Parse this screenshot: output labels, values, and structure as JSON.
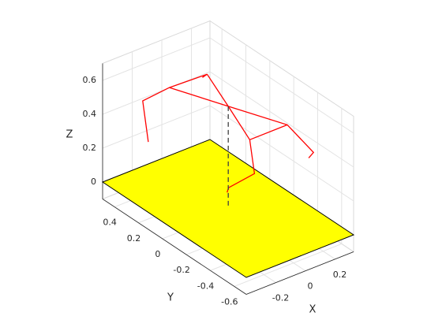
{
  "chart_data": {
    "type": "line3d",
    "xlabel": "X",
    "ylabel": "Y",
    "zlabel": "Z",
    "xlim": [
      -0.4,
      0.325
    ],
    "ylim": [
      -0.7,
      0.5
    ],
    "zlim": [
      -0.1,
      0.7
    ],
    "xticks": [
      -0.2,
      0,
      0.2
    ],
    "yticks": [
      -0.6,
      -0.4,
      -0.2,
      0,
      0.2,
      0.4
    ],
    "zticks": [
      0,
      0.2,
      0.4,
      0.6
    ],
    "grid": true,
    "surface": {
      "z": 0,
      "color": "#ffff00"
    },
    "series": [
      {
        "color": "#ff0000",
        "dashed": false,
        "x": [
          -0.329,
          -0.307,
          -0.163,
          0.081,
          0.062,
          null,
          -0.163,
          0.085,
          0.314,
          0.249,
          0.215,
          null,
          0.081,
          0.085,
          0.114,
          0.134,
          -0.119,
          -0.134,
          null,
          0.314,
          0.114
        ],
        "y": [
          0.206,
          0.28,
          0.235,
          0.222,
          0.238,
          null,
          0.235,
          0.05,
          -0.16,
          -0.459,
          -0.461,
          null,
          0.222,
          0.05,
          -0.093,
          -0.108,
          -0.205,
          -0.211,
          null,
          -0.16,
          -0.093
        ],
        "z": [
          0.35,
          0.55,
          0.6,
          0.6,
          0.58,
          null,
          0.6,
          0.49,
          0.4,
          0.4,
          0.38,
          null,
          0.6,
          0.49,
          0.35,
          0.15,
          0.2,
          0.18,
          null,
          0.4,
          0.35
        ]
      },
      {
        "color": "#404040",
        "dashed": true,
        "x": [
          0.085,
          0.085
        ],
        "y": [
          0.05,
          0.05
        ],
        "z": [
          0.49,
          -0.1
        ]
      }
    ]
  }
}
